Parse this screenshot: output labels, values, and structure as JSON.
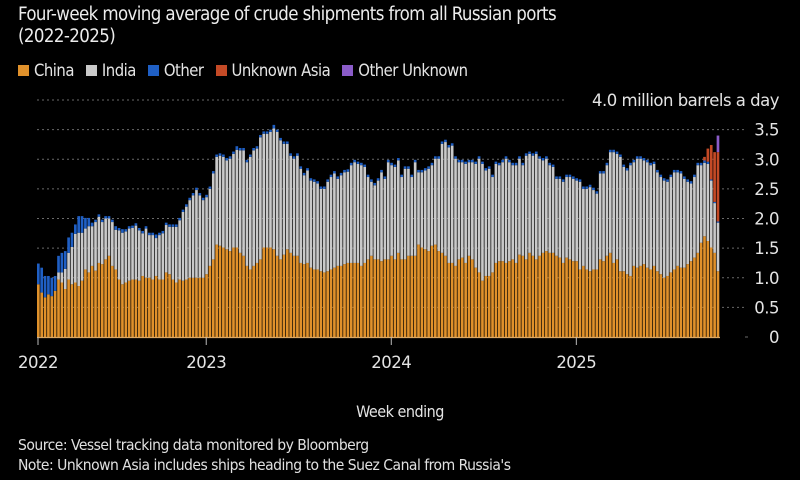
{
  "title_line1": "Four-week moving average of crude shipments from all Russian ports",
  "title_line2": "(2022-2025)",
  "source": "Source: Vessel tracking data monitored by Bloomberg",
  "note": "Note: Unknown Asia includes ships heading to the Suez Canal from Russia's",
  "legend": [
    {
      "label": "China",
      "color": "#e0912b"
    },
    {
      "label": "India",
      "color": "#c9c9c9"
    },
    {
      "label": "Other",
      "color": "#1f5fc4"
    },
    {
      "label": "Unknown Asia",
      "color": "#c44a26"
    },
    {
      "label": "Other Unknown",
      "color": "#8b5cc9"
    }
  ],
  "chart_data": {
    "type": "bar",
    "stacked": true,
    "frequency": "weekly",
    "xlabel": "Week ending",
    "ylabel": "4.0 million barrels a day",
    "ylim": [
      0,
      4.0
    ],
    "y_ticks": [
      "0",
      "0.5",
      "1.0",
      "1.5",
      "2.0",
      "2.5",
      "3.0",
      "3.5"
    ],
    "y_top_label": "4.0 million barrels a day",
    "x_ticks": [
      "2022",
      "2023",
      "2024",
      "2025"
    ],
    "grid": true,
    "legend_position": "top-left",
    "series": [
      {
        "name": "China",
        "values": [
          0.89,
          0.75,
          0.67,
          0.72,
          0.69,
          0.78,
          0.97,
          0.92,
          0.81,
          0.97,
          0.89,
          0.92,
          0.86,
          0.95,
          1.14,
          1.09,
          1.2,
          1.12,
          1.25,
          1.23,
          1.31,
          1.37,
          1.2,
          1.14,
          0.97,
          0.89,
          0.92,
          0.95,
          0.97,
          0.97,
          0.95,
          1.03,
          1.0,
          1.0,
          0.97,
          1.03,
          0.97,
          0.97,
          1.09,
          1.06,
          0.97,
          0.92,
          0.97,
          0.95,
          0.97,
          1.0,
          1.0,
          1.0,
          1.0,
          1.0,
          1.06,
          1.2,
          1.31,
          1.56,
          1.54,
          1.51,
          1.48,
          1.45,
          1.51,
          1.51,
          1.42,
          1.37,
          1.2,
          1.14,
          1.2,
          1.25,
          1.31,
          1.51,
          1.51,
          1.51,
          1.48,
          1.37,
          1.31,
          1.39,
          1.48,
          1.42,
          1.37,
          1.37,
          1.25,
          1.23,
          1.25,
          1.17,
          1.14,
          1.14,
          1.11,
          1.09,
          1.11,
          1.14,
          1.17,
          1.2,
          1.2,
          1.23,
          1.25,
          1.25,
          1.25,
          1.25,
          1.2,
          1.25,
          1.31,
          1.37,
          1.31,
          1.31,
          1.28,
          1.31,
          1.31,
          1.37,
          1.31,
          1.42,
          1.31,
          1.31,
          1.37,
          1.37,
          1.37,
          1.56,
          1.51,
          1.48,
          1.45,
          1.54,
          1.56,
          1.45,
          1.42,
          1.37,
          1.25,
          1.25,
          1.2,
          1.31,
          1.34,
          1.25,
          1.37,
          1.31,
          1.17,
          1.09,
          0.95,
          1.03,
          1.03,
          1.09,
          1.25,
          1.28,
          1.28,
          1.25,
          1.28,
          1.31,
          1.25,
          1.39,
          1.37,
          1.31,
          1.42,
          1.37,
          1.31,
          1.37,
          1.42,
          1.45,
          1.42,
          1.42,
          1.37,
          1.34,
          1.25,
          1.34,
          1.31,
          1.28,
          1.28,
          1.14,
          1.2,
          1.14,
          1.11,
          1.14,
          1.14,
          1.31,
          1.28,
          1.37,
          1.42,
          1.25,
          1.31,
          1.11,
          1.11,
          1.06,
          1.03,
          1.2,
          1.17,
          1.2,
          1.23,
          1.17,
          1.14,
          1.2,
          1.11,
          1.06,
          1.0,
          1.03,
          1.09,
          1.14,
          1.2,
          1.17,
          1.17,
          1.23,
          1.28,
          1.34,
          1.42,
          1.59,
          1.7,
          1.62,
          1.51,
          1.42,
          1.11
        ]
      },
      {
        "name": "India",
        "values": [
          0,
          0,
          0,
          0,
          0,
          0,
          0.12,
          0.17,
          0.34,
          0.45,
          0.63,
          0.82,
          0.9,
          0.81,
          0.69,
          0.78,
          0.67,
          0.82,
          0.78,
          0.71,
          0.69,
          0.63,
          0.74,
          0.67,
          0.83,
          0.87,
          0.86,
          0.88,
          0.87,
          0.91,
          0.85,
          0.72,
          0.83,
          0.72,
          0.75,
          0.64,
          0.75,
          0.78,
          0.8,
          0.8,
          0.89,
          0.94,
          1.0,
          1.16,
          1.23,
          1.31,
          1.39,
          1.48,
          1.39,
          1.31,
          1.3,
          1.3,
          1.45,
          1.48,
          1.52,
          1.53,
          1.5,
          1.56,
          1.58,
          1.65,
          1.73,
          1.78,
          1.75,
          1.9,
          1.95,
          1.93,
          2.06,
          1.92,
          1.92,
          1.95,
          2.04,
          2.09,
          2.01,
          1.87,
          1.78,
          1.64,
          1.64,
          1.69,
          1.59,
          1.5,
          1.56,
          1.47,
          1.48,
          1.45,
          1.39,
          1.41,
          1.51,
          1.56,
          1.59,
          1.47,
          1.53,
          1.55,
          1.54,
          1.65,
          1.7,
          1.67,
          1.7,
          1.62,
          1.39,
          1.25,
          1.25,
          1.33,
          1.5,
          1.36,
          1.64,
          1.53,
          1.56,
          1.56,
          1.39,
          1.53,
          1.47,
          1.33,
          1.58,
          1.22,
          1.27,
          1.33,
          1.39,
          1.36,
          1.45,
          1.56,
          1.84,
          1.92,
          1.95,
          1.98,
          1.81,
          1.64,
          1.61,
          1.67,
          1.58,
          1.64,
          1.75,
          1.92,
          1.97,
          1.78,
          1.81,
          1.61,
          1.67,
          1.62,
          1.67,
          1.76,
          1.67,
          1.59,
          1.65,
          1.62,
          1.53,
          1.75,
          1.67,
          1.69,
          1.78,
          1.64,
          1.56,
          1.56,
          1.48,
          1.45,
          1.3,
          1.33,
          1.37,
          1.36,
          1.39,
          1.39,
          1.36,
          1.48,
          1.3,
          1.36,
          1.42,
          1.34,
          1.28,
          1.45,
          1.48,
          1.53,
          1.7,
          1.87,
          1.78,
          1.93,
          1.76,
          1.75,
          1.87,
          1.75,
          1.84,
          1.81,
          1.75,
          1.78,
          1.76,
          1.72,
          1.67,
          1.64,
          1.64,
          1.59,
          1.61,
          1.64,
          1.58,
          1.59,
          1.5,
          1.39,
          1.31,
          1.36,
          1.48,
          1.31,
          1.24,
          1.3,
          1.13,
          0.84,
          0.82
        ]
      },
      {
        "name": "Other",
        "values": [
          0.35,
          0.42,
          0.36,
          0.31,
          0.31,
          0.25,
          0.28,
          0.33,
          0.3,
          0.26,
          0.24,
          0.16,
          0.28,
          0.28,
          0.18,
          0.14,
          0.06,
          0.04,
          0.04,
          0.04,
          0.04,
          0.04,
          0.04,
          0.06,
          0.04,
          0.06,
          0.04,
          0.04,
          0.04,
          0.04,
          0.04,
          0.04,
          0.04,
          0.04,
          0.04,
          0.06,
          0.04,
          0.04,
          0.04,
          0.04,
          0.04,
          0.04,
          0.04,
          0.04,
          0.04,
          0.04,
          0.04,
          0.04,
          0.04,
          0.04,
          0.04,
          0.04,
          0.04,
          0.04,
          0.04,
          0.04,
          0.04,
          0.04,
          0.04,
          0.06,
          0.04,
          0.04,
          0.04,
          0.04,
          0.04,
          0.04,
          0.04,
          0.04,
          0.04,
          0.04,
          0.06,
          0.04,
          0.04,
          0.04,
          0.04,
          0.04,
          0.04,
          0.04,
          0.04,
          0.04,
          0.04,
          0.04,
          0.04,
          0.04,
          0.04,
          0.04,
          0.04,
          0.04,
          0.04,
          0.04,
          0.04,
          0.04,
          0.04,
          0.04,
          0.04,
          0.04,
          0.04,
          0.04,
          0.04,
          0.04,
          0.04,
          0.04,
          0.04,
          0.04,
          0.04,
          0.04,
          0.04,
          0.04,
          0.04,
          0.04,
          0.04,
          0.04,
          0.04,
          0.04,
          0.04,
          0.04,
          0.04,
          0.04,
          0.04,
          0.04,
          0.04,
          0.04,
          0.04,
          0.04,
          0.04,
          0.04,
          0.04,
          0.04,
          0.04,
          0.04,
          0.04,
          0.04,
          0.04,
          0.04,
          0.04,
          0.04,
          0.04,
          0.04,
          0.04,
          0.04,
          0.04,
          0.04,
          0.04,
          0.04,
          0.04,
          0.04,
          0.04,
          0.04,
          0.04,
          0.04,
          0.04,
          0.04,
          0.04,
          0.04,
          0.04,
          0.04,
          0.04,
          0.04,
          0.04,
          0.04,
          0.04,
          0.04,
          0.04,
          0.04,
          0.04,
          0.04,
          0.04,
          0.04,
          0.04,
          0.04,
          0.04,
          0.04,
          0.04,
          0.04,
          0.04,
          0.04,
          0.04,
          0.04,
          0.04,
          0.04,
          0.04,
          0.04,
          0.04,
          0.04,
          0.04,
          0.04,
          0.04,
          0.04,
          0.04,
          0.04,
          0.04,
          0.04,
          0.04,
          0.04,
          0.04,
          0.04,
          0.04,
          0.04,
          0.04,
          0.04,
          0.02,
          0.02,
          0.02,
          0,
          0
        ]
      },
      {
        "name": "Unknown Asia",
        "values": [
          0,
          0,
          0,
          0,
          0,
          0,
          0,
          0,
          0,
          0,
          0,
          0,
          0,
          0,
          0,
          0,
          0,
          0,
          0,
          0,
          0,
          0,
          0,
          0,
          0,
          0,
          0,
          0,
          0,
          0,
          0,
          0,
          0,
          0,
          0,
          0,
          0,
          0,
          0,
          0,
          0,
          0,
          0,
          0,
          0,
          0,
          0,
          0,
          0,
          0,
          0,
          0,
          0,
          0,
          0,
          0,
          0,
          0,
          0,
          0,
          0,
          0,
          0,
          0,
          0,
          0,
          0,
          0,
          0,
          0,
          0,
          0,
          0,
          0,
          0,
          0,
          0,
          0,
          0,
          0,
          0,
          0,
          0,
          0,
          0,
          0,
          0,
          0,
          0,
          0,
          0,
          0,
          0,
          0,
          0,
          0,
          0,
          0,
          0,
          0,
          0,
          0,
          0,
          0,
          0,
          0,
          0,
          0,
          0,
          0,
          0,
          0,
          0,
          0,
          0,
          0,
          0,
          0,
          0,
          0,
          0,
          0,
          0,
          0,
          0,
          0,
          0,
          0,
          0,
          0,
          0,
          0,
          0,
          0,
          0,
          0,
          0,
          0,
          0,
          0,
          0,
          0,
          0,
          0,
          0,
          0,
          0,
          0,
          0,
          0,
          0,
          0,
          0,
          0,
          0,
          0,
          0,
          0,
          0,
          0,
          0,
          0,
          0,
          0,
          0,
          0,
          0,
          0,
          0,
          0,
          0,
          0,
          0,
          0,
          0,
          0,
          0,
          0,
          0,
          0,
          0,
          0,
          0,
          0,
          0,
          0,
          0,
          0,
          0,
          0,
          0,
          0,
          0,
          0,
          0,
          0,
          0,
          0,
          0.06,
          0.22,
          0.58,
          0.84,
          1.17
        ]
      },
      {
        "name": "Other Unknown",
        "values": [
          0,
          0,
          0,
          0,
          0,
          0,
          0,
          0,
          0,
          0,
          0,
          0,
          0,
          0,
          0,
          0,
          0,
          0,
          0,
          0,
          0,
          0,
          0,
          0,
          0,
          0,
          0,
          0,
          0,
          0,
          0,
          0,
          0,
          0,
          0,
          0,
          0,
          0,
          0,
          0,
          0,
          0,
          0,
          0,
          0,
          0,
          0,
          0,
          0,
          0,
          0,
          0,
          0,
          0,
          0,
          0,
          0,
          0,
          0,
          0,
          0,
          0,
          0,
          0,
          0,
          0,
          0,
          0,
          0,
          0,
          0,
          0,
          0,
          0,
          0,
          0,
          0,
          0,
          0,
          0,
          0,
          0,
          0,
          0,
          0,
          0,
          0,
          0,
          0,
          0,
          0,
          0,
          0,
          0,
          0,
          0,
          0,
          0,
          0,
          0,
          0,
          0,
          0,
          0,
          0,
          0,
          0,
          0,
          0,
          0,
          0,
          0,
          0,
          0,
          0,
          0,
          0,
          0,
          0,
          0,
          0,
          0,
          0,
          0,
          0,
          0,
          0,
          0,
          0,
          0,
          0,
          0,
          0,
          0,
          0,
          0,
          0,
          0,
          0,
          0,
          0,
          0,
          0,
          0,
          0,
          0,
          0,
          0,
          0,
          0,
          0,
          0,
          0,
          0,
          0,
          0,
          0,
          0,
          0,
          0,
          0,
          0,
          0,
          0,
          0,
          0,
          0,
          0,
          0,
          0,
          0,
          0,
          0,
          0,
          0,
          0,
          0,
          0,
          0,
          0,
          0,
          0,
          0,
          0,
          0,
          0,
          0,
          0,
          0,
          0,
          0,
          0,
          0,
          0,
          0,
          0,
          0,
          0,
          0,
          0,
          0,
          0,
          0.28
        ]
      }
    ]
  }
}
